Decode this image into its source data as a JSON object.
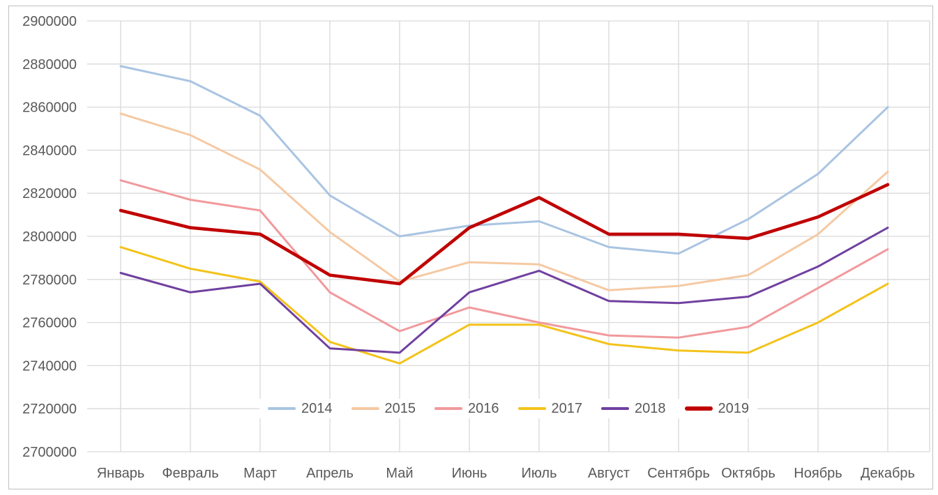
{
  "colors": {
    "gridline": "#D9D9D9",
    "frame_border": "#BFBFBF",
    "axis_text": "#595959",
    "background": "#FFFFFF"
  },
  "chart_data": {
    "type": "line",
    "title": "",
    "xlabel": "",
    "ylabel": "",
    "grid": true,
    "legend_position": "bottom-center-inside",
    "ylim": [
      2700000,
      2900000
    ],
    "y_tick_step": 20000,
    "y_ticks": [
      "2900000",
      "2880000",
      "2860000",
      "2840000",
      "2820000",
      "2800000",
      "2780000",
      "2760000",
      "2740000",
      "2720000",
      "2700000"
    ],
    "categories": [
      "Январь",
      "Февраль",
      "Март",
      "Апрель",
      "Май",
      "Июнь",
      "Июль",
      "Август",
      "Сентябрь",
      "Октябрь",
      "Ноябрь",
      "Декабрь"
    ],
    "series": [
      {
        "name": "2014",
        "color": "#A9C4E2",
        "emphasis": false,
        "values": [
          2879000,
          2872000,
          2856000,
          2819000,
          2800000,
          2805000,
          2807000,
          2795000,
          2792000,
          2808000,
          2829000,
          2860000
        ]
      },
      {
        "name": "2015",
        "color": "#F5C9A3",
        "emphasis": false,
        "values": [
          2857000,
          2847000,
          2831000,
          2802000,
          2779000,
          2788000,
          2787000,
          2775000,
          2777000,
          2782000,
          2801000,
          2830000
        ]
      },
      {
        "name": "2016",
        "color": "#F1999C",
        "emphasis": false,
        "values": [
          2826000,
          2817000,
          2812000,
          2774000,
          2756000,
          2767000,
          2760000,
          2754000,
          2753000,
          2758000,
          2776000,
          2794000
        ]
      },
      {
        "name": "2017",
        "color": "#F3C31A",
        "emphasis": false,
        "values": [
          2795000,
          2785000,
          2779000,
          2751000,
          2741000,
          2759000,
          2759000,
          2750000,
          2747000,
          2746000,
          2760000,
          2778000
        ]
      },
      {
        "name": "2018",
        "color": "#7040A0",
        "emphasis": false,
        "values": [
          2783000,
          2774000,
          2778000,
          2748000,
          2746000,
          2774000,
          2784000,
          2770000,
          2769000,
          2772000,
          2786000,
          2804000
        ]
      },
      {
        "name": "2019",
        "color": "#C00000",
        "emphasis": true,
        "values": [
          2812000,
          2804000,
          2801000,
          2782000,
          2778000,
          2804000,
          2818000,
          2801000,
          2801000,
          2799000,
          2809000,
          2824000
        ]
      }
    ]
  }
}
